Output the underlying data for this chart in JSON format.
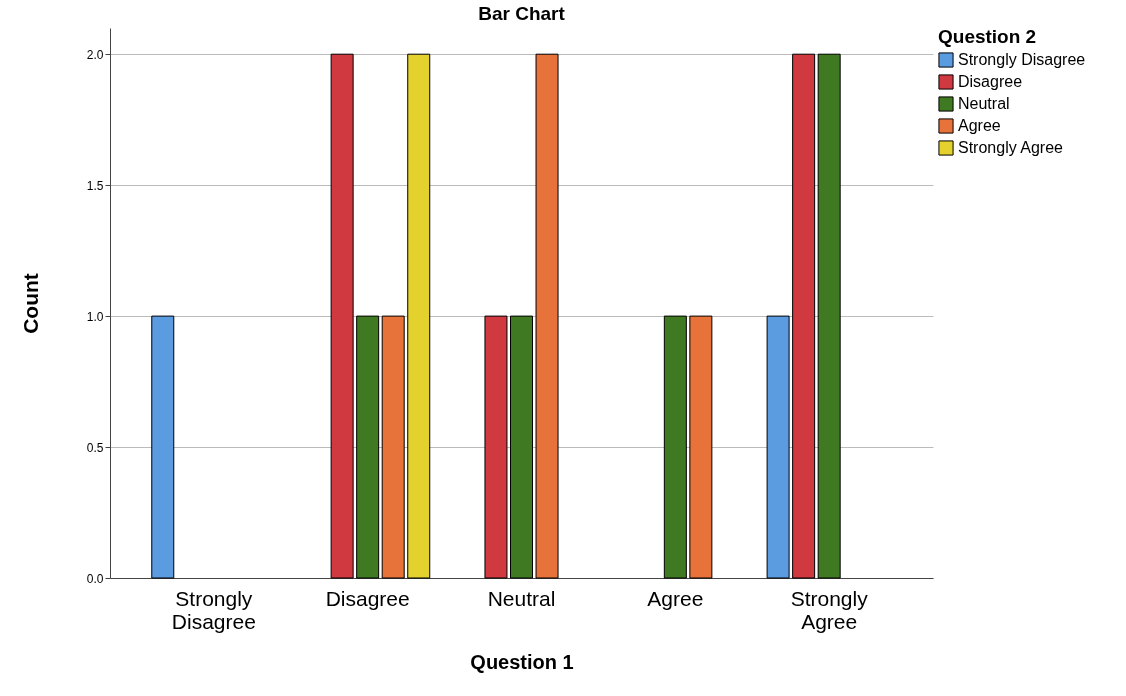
{
  "chart_data": {
    "type": "bar",
    "title": "Bar Chart",
    "xlabel": "Question 1",
    "ylabel": "Count",
    "legend_title": "Question 2",
    "categories": [
      "Strongly Disagree",
      "Disagree",
      "Neutral",
      "Agree",
      "Strongly Agree"
    ],
    "series": [
      {
        "name": "Strongly Disagree",
        "color": "#5b9be0",
        "values": [
          1,
          null,
          null,
          null,
          1
        ]
      },
      {
        "name": "Disagree",
        "color": "#d0393f",
        "values": [
          null,
          2,
          1,
          null,
          2
        ]
      },
      {
        "name": "Neutral",
        "color": "#3f7a22",
        "values": [
          null,
          1,
          1,
          1,
          2
        ]
      },
      {
        "name": "Agree",
        "color": "#e8733a",
        "values": [
          null,
          1,
          2,
          1,
          null
        ]
      },
      {
        "name": "Strongly Agree",
        "color": "#e4d12e",
        "values": [
          null,
          2,
          null,
          null,
          null
        ]
      }
    ],
    "ylim": [
      0,
      2.1
    ],
    "yticks": [
      {
        "value": 0,
        "label": "0.0"
      },
      {
        "value": 0.5,
        "label": "0.5"
      },
      {
        "value": 1,
        "label": "1.0"
      },
      {
        "value": 1.5,
        "label": "1.5"
      },
      {
        "value": 2,
        "label": "2.0"
      }
    ],
    "grid": "y",
    "legend": "top right"
  }
}
